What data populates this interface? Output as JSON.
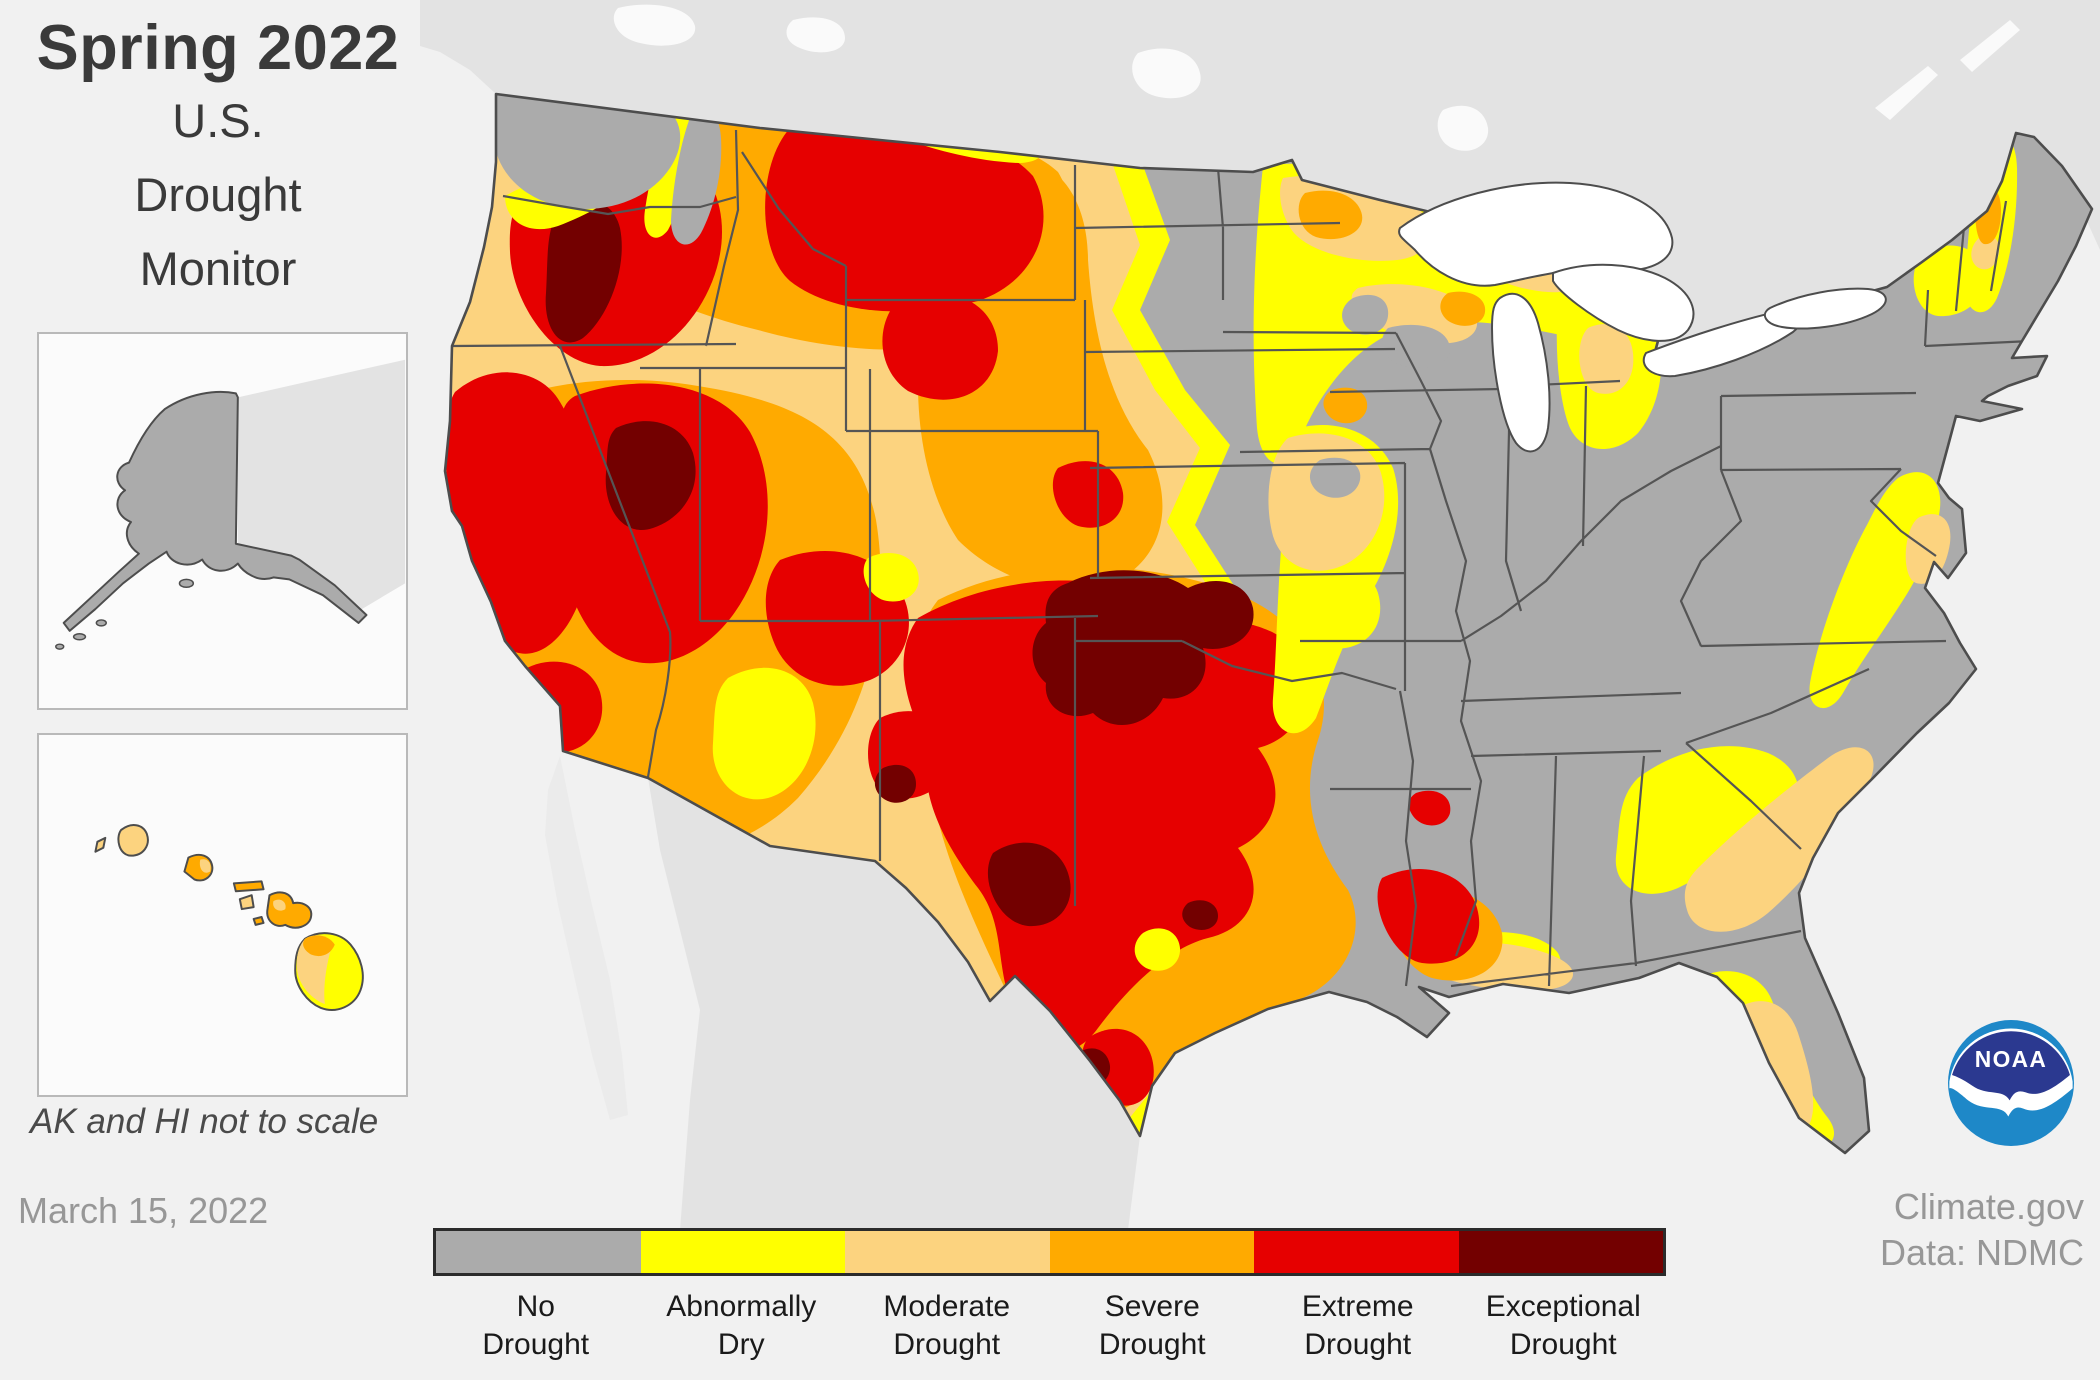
{
  "header": {
    "title": "Spring 2022",
    "subtitle_lines": [
      "U.S.",
      "Drought",
      "Monitor"
    ]
  },
  "insets": {
    "note": "AK and HI not to scale"
  },
  "footer": {
    "date": "March 15, 2022",
    "source_line1": "Climate.gov",
    "source_line2": "Data: NDMC"
  },
  "logo": {
    "text": "NOAA"
  },
  "legend": {
    "items": [
      {
        "label": "No\nDrought",
        "color": "#ababab"
      },
      {
        "label": "Abnormally\nDry",
        "color": "#ffff00"
      },
      {
        "label": "Moderate\nDrought",
        "color": "#fcd37f"
      },
      {
        "label": "Severe\nDrought",
        "color": "#ffaa00"
      },
      {
        "label": "Extreme\nDrought",
        "color": "#e60000"
      },
      {
        "label": "Exceptional\nDrought",
        "color": "#730000"
      }
    ]
  },
  "map": {
    "type": "choropleth",
    "regions_shown": [
      "Contiguous United States",
      "Alaska",
      "Hawaii"
    ],
    "colors": {
      "no_drought": "#ababab",
      "abnormally_dry": "#ffff00",
      "moderate_drought": "#fcd37f",
      "severe_drought": "#ffaa00",
      "extreme_drought": "#e60000",
      "exceptional_drought": "#730000",
      "canada_mexico_land": "#e3e3e3",
      "baja_land": "#ebebeb",
      "water": "#f1f1f1",
      "lakes": "#ffffff",
      "state_border": "#555555",
      "noaa_navy": "#2b3990",
      "noaa_blue": "#1e88c8"
    }
  }
}
